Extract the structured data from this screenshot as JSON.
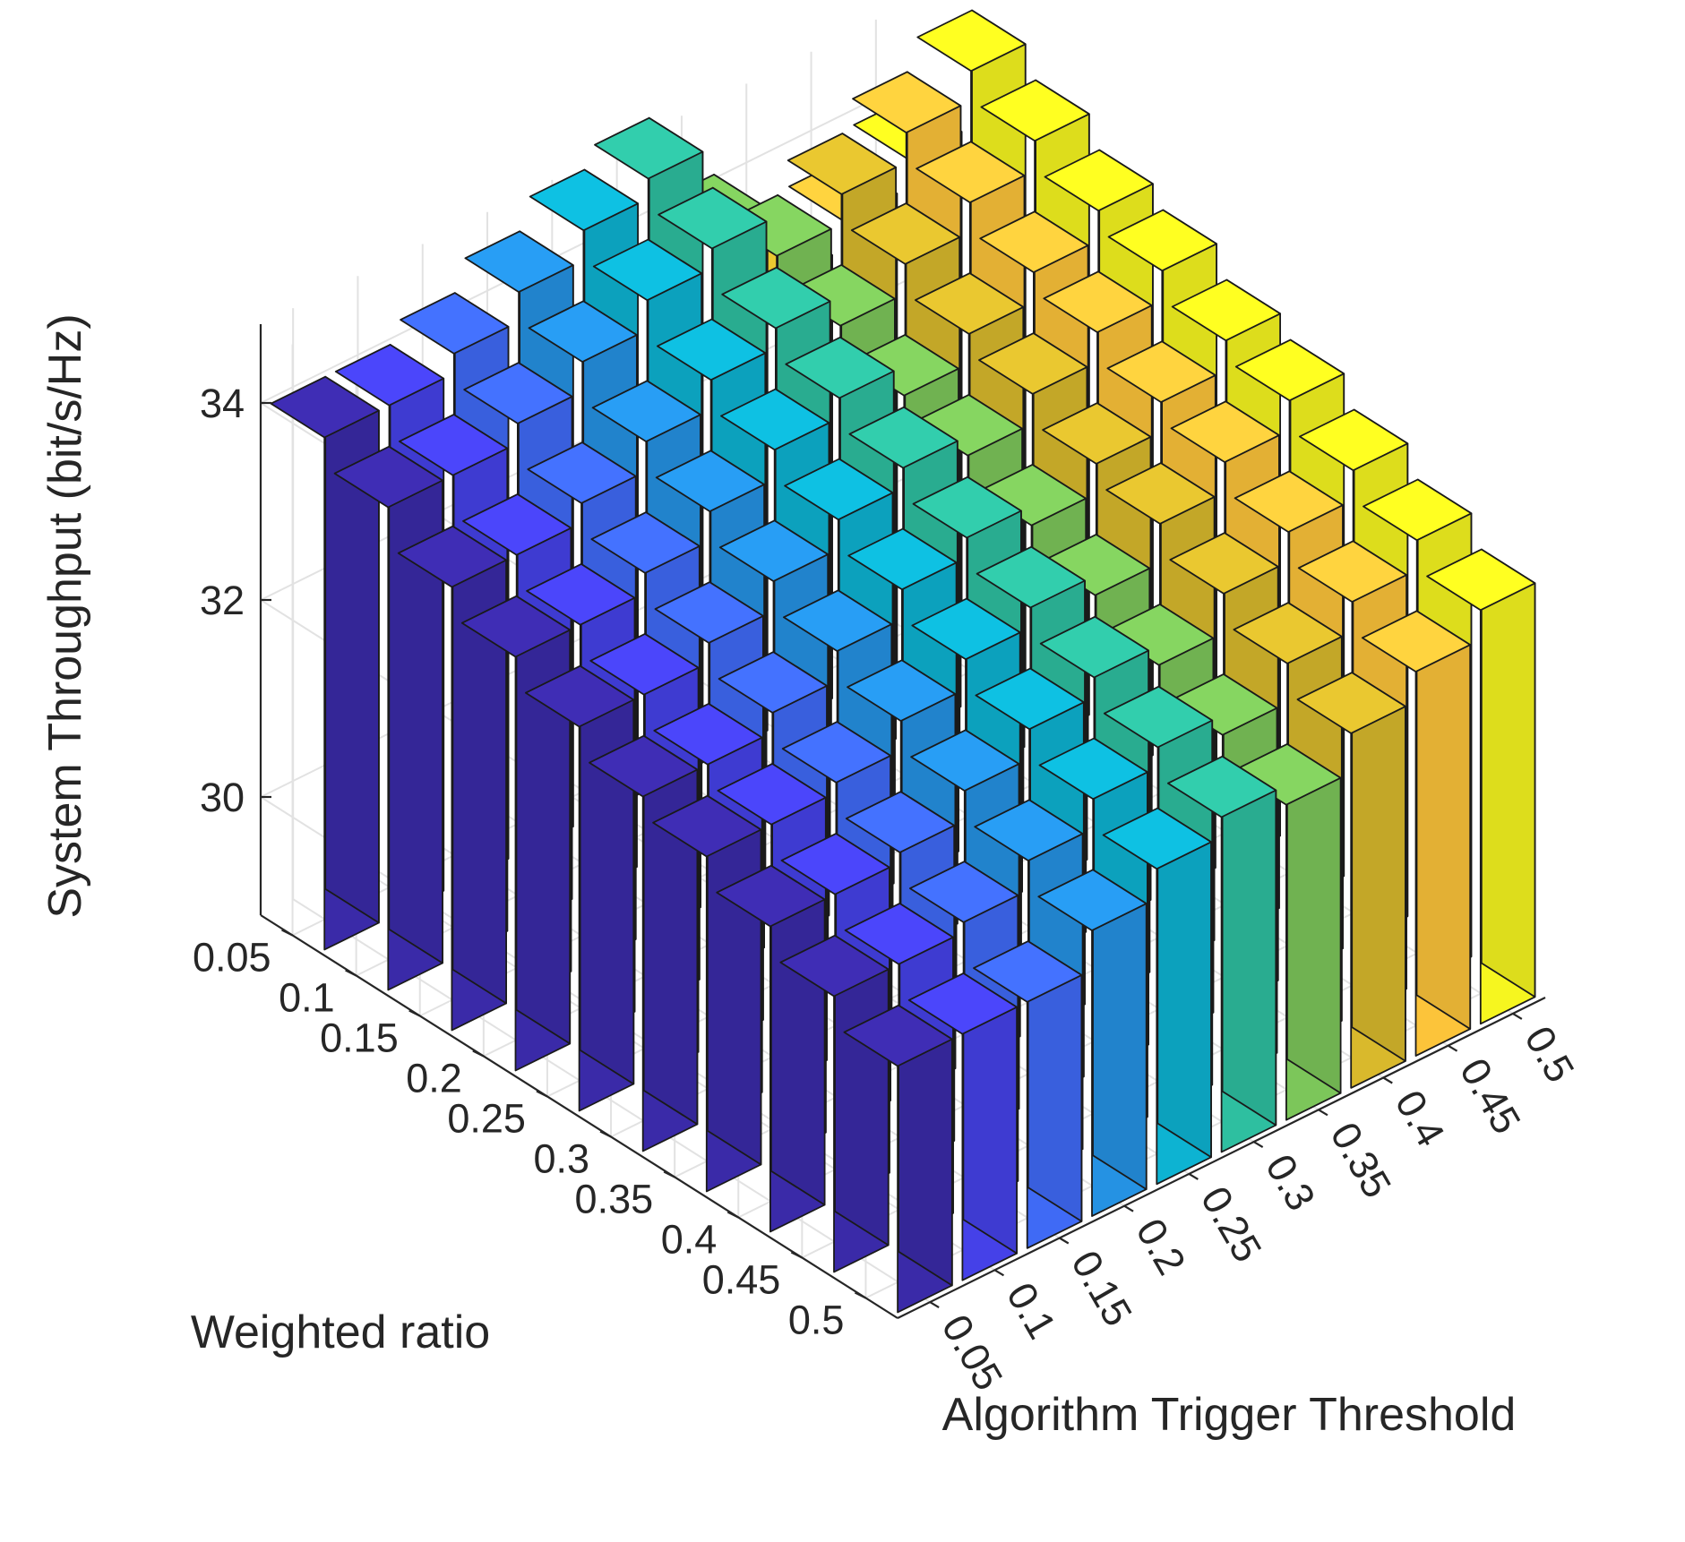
{
  "chart_data": {
    "type": "bar3d",
    "title": "",
    "xlabel": "Algorithm Trigger Threshold",
    "ylabel": "Weighted ratio",
    "zlabel": "System Throughput (bit/s/Hz)",
    "x_categories": [
      "0.05",
      "0.1",
      "0.15",
      "0.2",
      "0.25",
      "0.3",
      "0.35",
      "0.4",
      "0.45",
      "0.5"
    ],
    "y_categories": [
      "0.05",
      "0.1",
      "0.15",
      "0.2",
      "0.25",
      "0.3",
      "0.35",
      "0.4",
      "0.45",
      "0.5"
    ],
    "zlim": [
      28.8,
      34.8
    ],
    "z_ticks": [
      "30",
      "32",
      "34"
    ],
    "color_by": "Algorithm Trigger Threshold",
    "colors": [
      "#3a2aa8",
      "#4541e8",
      "#3f6af5",
      "#2592e3",
      "#0db3d2",
      "#2ebfa0",
      "#7cc65a",
      "#d9b92c",
      "#fcc43a",
      "#f6f61f"
    ],
    "edge_color": "#1a1a1a",
    "values": [
      [
        34.0,
        34.0,
        34.2,
        34.5,
        34.8,
        35.0,
        34.1,
        33.3,
        33.6,
        33.9
      ],
      [
        33.7,
        33.7,
        33.9,
        34.2,
        34.5,
        34.7,
        34.3,
        34.6,
        34.9,
        35.2
      ],
      [
        33.3,
        33.3,
        33.5,
        33.8,
        34.1,
        34.3,
        34.0,
        34.3,
        34.6,
        34.9
      ],
      [
        33.0,
        33.0,
        33.2,
        33.5,
        33.8,
        34.0,
        33.7,
        34.0,
        34.3,
        34.6
      ],
      [
        32.7,
        32.7,
        32.9,
        33.2,
        33.5,
        33.7,
        33.5,
        33.8,
        34.1,
        34.4
      ],
      [
        32.4,
        32.4,
        32.6,
        32.9,
        33.2,
        33.4,
        33.2,
        33.5,
        33.8,
        34.1
      ],
      [
        32.2,
        32.2,
        32.3,
        32.6,
        32.9,
        33.1,
        32.9,
        33.3,
        33.6,
        33.9
      ],
      [
        31.9,
        31.9,
        32.0,
        32.3,
        32.6,
        32.8,
        32.6,
        33.0,
        33.3,
        33.6
      ],
      [
        31.6,
        31.6,
        31.7,
        32.0,
        32.3,
        32.5,
        32.3,
        32.7,
        33.0,
        33.3
      ],
      [
        31.3,
        31.3,
        31.3,
        31.7,
        32.0,
        32.2,
        32.0,
        32.4,
        32.7,
        33.0
      ]
    ]
  }
}
